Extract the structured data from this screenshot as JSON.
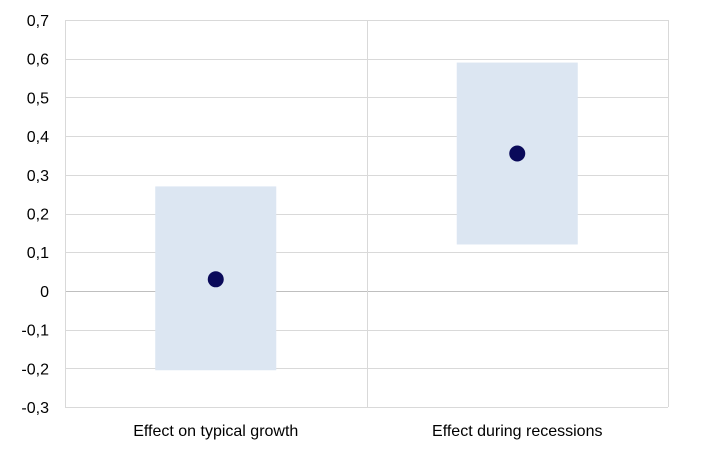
{
  "chart_data": {
    "type": "scatter",
    "categories": [
      "Effect on typical growth",
      "Effect during recessions"
    ],
    "series": [
      {
        "points": [
          0.03,
          0.355
        ]
      }
    ],
    "ranges": [
      {
        "low": -0.205,
        "high": 0.27
      },
      {
        "low": 0.12,
        "high": 0.59
      }
    ],
    "y_ticks": [
      "-0,3",
      "-0,2",
      "-0,1",
      "0",
      "0,1",
      "0,2",
      "0,3",
      "0,4",
      "0,5",
      "0,6",
      "0,7"
    ],
    "ylim": [
      -0.3,
      0.7
    ],
    "grid": true,
    "colors": {
      "point": "#0a0a5a",
      "range": "#dce6f2",
      "grid": "#d9d9d9",
      "axis": "#bfbfbf"
    }
  }
}
